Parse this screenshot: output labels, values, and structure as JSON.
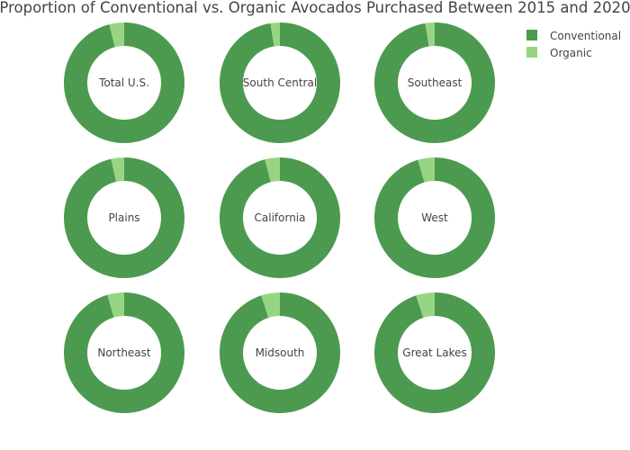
{
  "chart_data": {
    "type": "pie",
    "title": "Proportion of Conventional vs. Organic Avocados Purchased Between 2015 and 2020",
    "legend": {
      "placement": "top-right",
      "entries": [
        "Conventional",
        "Organic"
      ]
    },
    "colors": {
      "Conventional": "#4c9a4f",
      "Organic": "#98d583"
    },
    "hole": "donut",
    "panels": [
      {
        "name": "Total U.S.",
        "values": {
          "Conventional": 96.0,
          "Organic": 4.0
        }
      },
      {
        "name": "South Central",
        "values": {
          "Conventional": 97.5,
          "Organic": 2.5
        }
      },
      {
        "name": "Southeast",
        "values": {
          "Conventional": 97.5,
          "Organic": 2.5
        }
      },
      {
        "name": "Plains",
        "values": {
          "Conventional": 96.5,
          "Organic": 3.5
        }
      },
      {
        "name": "California",
        "values": {
          "Conventional": 96.0,
          "Organic": 4.0
        }
      },
      {
        "name": "West",
        "values": {
          "Conventional": 95.5,
          "Organic": 4.5
        }
      },
      {
        "name": "Northeast",
        "values": {
          "Conventional": 95.5,
          "Organic": 4.5
        }
      },
      {
        "name": "Midsouth",
        "values": {
          "Conventional": 95.0,
          "Organic": 5.0
        }
      },
      {
        "name": "Great Lakes",
        "values": {
          "Conventional": 95.0,
          "Organic": 5.0
        }
      }
    ]
  }
}
